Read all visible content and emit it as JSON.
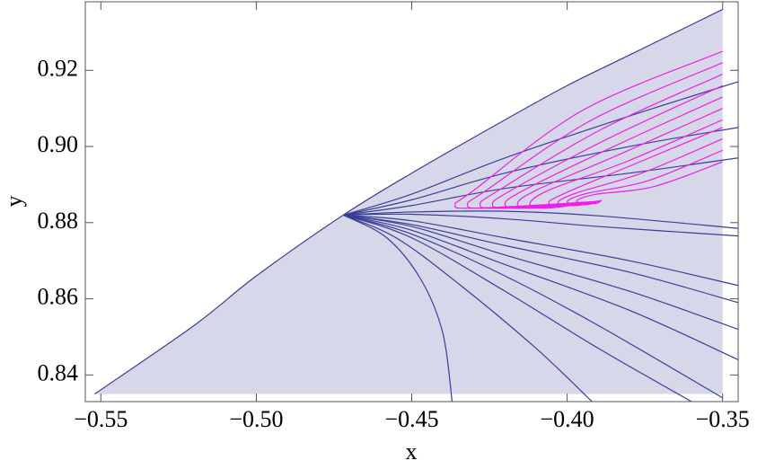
{
  "chart_data": {
    "type": "line",
    "xlabel": "x",
    "ylabel": "y",
    "xlim": [
      -0.555,
      -0.345
    ],
    "ylim": [
      0.833,
      0.938
    ],
    "xticks": [
      {
        "value": -0.55,
        "label": "−0.55"
      },
      {
        "value": -0.5,
        "label": "−0.50"
      },
      {
        "value": -0.45,
        "label": "−0.45"
      },
      {
        "value": -0.4,
        "label": "−0.40"
      },
      {
        "value": -0.35,
        "label": "−0.35"
      }
    ],
    "yticks": [
      0.84,
      0.86,
      0.88,
      {
        "value": 0.9,
        "label": "0.90"
      },
      0.92
    ],
    "region": {
      "color": "#d6d8ea",
      "edge": "#3a3e96",
      "baseline": 0.835,
      "x": [
        -0.552,
        -0.52,
        -0.5,
        -0.472,
        -0.45,
        -0.42,
        -0.4,
        -0.38,
        -0.35
      ],
      "values": [
        0.835,
        0.853,
        0.866,
        0.882,
        0.893,
        0.907,
        0.916,
        0.924,
        0.936
      ]
    },
    "series": [
      {
        "color": "#3a3e96",
        "x": [
          -0.472,
          -0.45,
          -0.42,
          -0.38,
          -0.345
        ],
        "values": [
          0.882,
          0.8875,
          0.897,
          0.908,
          0.917
        ]
      },
      {
        "color": "#3a3e96",
        "x": [
          -0.472,
          -0.45,
          -0.42,
          -0.38,
          -0.345
        ],
        "values": [
          0.882,
          0.886,
          0.893,
          0.9,
          0.905
        ]
      },
      {
        "color": "#3a3e96",
        "x": [
          -0.472,
          -0.45,
          -0.42,
          -0.38,
          -0.345
        ],
        "values": [
          0.882,
          0.8845,
          0.889,
          0.893,
          0.897
        ]
      },
      {
        "color": "#3a3e96",
        "x": [
          -0.472,
          -0.45,
          -0.42,
          -0.39,
          -0.345
        ],
        "values": [
          0.882,
          0.8828,
          0.883,
          0.8818,
          0.8785
        ]
      },
      {
        "color": "#3a3e96",
        "x": [
          -0.472,
          -0.45,
          -0.42,
          -0.39,
          -0.345
        ],
        "values": [
          0.882,
          0.8822,
          0.881,
          0.879,
          0.8765
        ]
      },
      {
        "color": "#3a3e96",
        "x": [
          -0.472,
          -0.45,
          -0.42,
          -0.38,
          -0.345
        ],
        "values": [
          0.882,
          0.8805,
          0.876,
          0.87,
          0.8635
        ]
      },
      {
        "color": "#3a3e96",
        "x": [
          -0.472,
          -0.45,
          -0.42,
          -0.38,
          -0.345
        ],
        "values": [
          0.882,
          0.8795,
          0.874,
          0.867,
          0.859
        ]
      },
      {
        "color": "#3a3e96",
        "x": [
          -0.472,
          -0.45,
          -0.42,
          -0.38,
          -0.345
        ],
        "values": [
          0.882,
          0.879,
          0.8715,
          0.862,
          0.852
        ]
      },
      {
        "color": "#3a3e96",
        "x": [
          -0.472,
          -0.45,
          -0.42,
          -0.38,
          -0.345
        ],
        "values": [
          0.882,
          0.878,
          0.869,
          0.857,
          0.844
        ]
      },
      {
        "color": "#3a3e96",
        "x": [
          -0.472,
          -0.45,
          -0.42,
          -0.39,
          -0.35
        ],
        "values": [
          0.882,
          0.877,
          0.866,
          0.853,
          0.834
        ]
      },
      {
        "color": "#3a3e96",
        "x": [
          -0.472,
          -0.45,
          -0.42,
          -0.39,
          -0.36
        ],
        "values": [
          0.882,
          0.876,
          0.862,
          0.847,
          0.833
        ]
      },
      {
        "color": "#3a3e96",
        "x": [
          -0.472,
          -0.455,
          -0.435,
          -0.41,
          -0.392
        ],
        "values": [
          0.882,
          0.876,
          0.864,
          0.847,
          0.833
        ]
      },
      {
        "color": "#3a3e96",
        "x": [
          -0.472,
          -0.458,
          -0.447,
          -0.44,
          -0.437
        ],
        "values": [
          0.882,
          0.876,
          0.865,
          0.851,
          0.833
        ]
      },
      {
        "color": "#ee1ee8",
        "x": [
          -0.391,
          -0.43,
          -0.436,
          -0.43,
          -0.395,
          -0.35
        ],
        "values": [
          0.8855,
          0.8838,
          0.8848,
          0.8885,
          0.9095,
          0.925
        ]
      },
      {
        "color": "#ee1ee8",
        "x": [
          -0.391,
          -0.426,
          -0.432,
          -0.426,
          -0.392,
          -0.35
        ],
        "values": [
          0.8855,
          0.8838,
          0.8848,
          0.8885,
          0.907,
          0.922
        ]
      },
      {
        "color": "#ee1ee8",
        "x": [
          -0.391,
          -0.422,
          -0.428,
          -0.422,
          -0.389,
          -0.35
        ],
        "values": [
          0.8855,
          0.8838,
          0.8848,
          0.8885,
          0.9045,
          0.919
        ]
      },
      {
        "color": "#ee1ee8",
        "x": [
          -0.391,
          -0.418,
          -0.424,
          -0.418,
          -0.387,
          -0.35
        ],
        "values": [
          0.8855,
          0.8838,
          0.8848,
          0.8885,
          0.902,
          0.916
        ]
      },
      {
        "color": "#ee1ee8",
        "x": [
          -0.391,
          -0.414,
          -0.42,
          -0.414,
          -0.385,
          -0.35
        ],
        "values": [
          0.8855,
          0.8838,
          0.8848,
          0.8885,
          0.9,
          0.913
        ]
      },
      {
        "color": "#ee1ee8",
        "x": [
          -0.391,
          -0.41,
          -0.416,
          -0.41,
          -0.383,
          -0.35
        ],
        "values": [
          0.8855,
          0.8838,
          0.8848,
          0.8885,
          0.898,
          0.91
        ]
      },
      {
        "color": "#ee1ee8",
        "x": [
          -0.391,
          -0.406,
          -0.412,
          -0.406,
          -0.381,
          -0.35
        ],
        "values": [
          0.8855,
          0.8838,
          0.8848,
          0.8885,
          0.896,
          0.907
        ]
      },
      {
        "color": "#ee1ee8",
        "x": [
          -0.389,
          -0.4,
          -0.406,
          -0.4,
          -0.378,
          -0.35
        ],
        "values": [
          0.8858,
          0.8845,
          0.8852,
          0.888,
          0.8955,
          0.905
        ]
      },
      {
        "color": "#ee1ee8",
        "x": [
          -0.389,
          -0.397,
          -0.403,
          -0.397,
          -0.376,
          -0.35
        ],
        "values": [
          0.8858,
          0.8845,
          0.8852,
          0.8878,
          0.893,
          0.902
        ]
      },
      {
        "color": "#ee1ee8",
        "x": [
          -0.389,
          -0.394,
          -0.4,
          -0.394,
          -0.374,
          -0.35
        ],
        "values": [
          0.8858,
          0.8847,
          0.8854,
          0.8876,
          0.891,
          0.899
        ]
      },
      {
        "color": "#ee1ee8",
        "x": [
          -0.389,
          -0.391,
          -0.397,
          -0.391,
          -0.372,
          -0.35
        ],
        "values": [
          0.8858,
          0.885,
          0.8856,
          0.8874,
          0.8895,
          0.896
        ]
      }
    ]
  }
}
